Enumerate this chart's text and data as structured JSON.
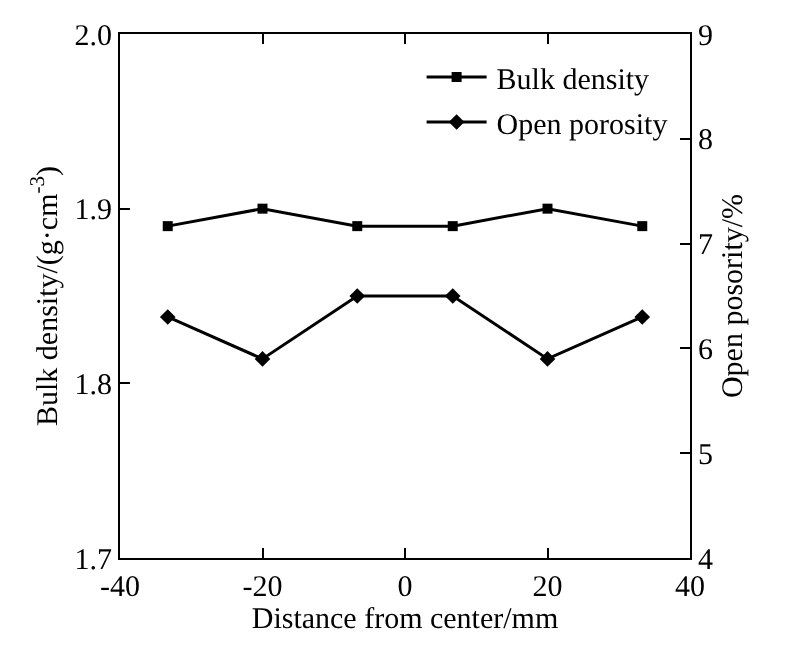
{
  "chart_data": {
    "type": "line",
    "xlabel": "Distance from center/mm",
    "ylabel": "Bulk density/(g·cm$^{-3}$)",
    "y2label": "Open posority/%",
    "x": [
      -33.3,
      -20,
      -6.7,
      6.7,
      20,
      33.3
    ],
    "series": [
      {
        "name": "Bulk density",
        "color": "#000000",
        "marker": "square",
        "values": [
          1.89,
          1.9,
          1.89,
          1.89,
          1.9,
          1.89
        ]
      },
      {
        "name": "Open porosity",
        "color": "#000000",
        "marker": "diamond",
        "axis": "y2",
        "values": [
          6.3,
          5.9,
          6.5,
          6.5,
          5.9,
          6.3
        ]
      }
    ],
    "xlim": [
      -40,
      40
    ],
    "xticks": [
      -40,
      -20,
      0,
      20,
      40
    ],
    "ylim": [
      1.7,
      2.0
    ],
    "yticks": [
      {
        "value": 1.7,
        "label": "1.7"
      },
      {
        "value": 1.8,
        "label": "1.8"
      },
      {
        "value": 1.9,
        "label": "1.9"
      },
      {
        "value": 2.0,
        "label": "2.0"
      }
    ],
    "y2lim": [
      4,
      9
    ],
    "y2ticks": [
      4,
      5,
      6,
      7,
      8,
      9
    ],
    "legend": "top right",
    "line_style": "solid"
  }
}
